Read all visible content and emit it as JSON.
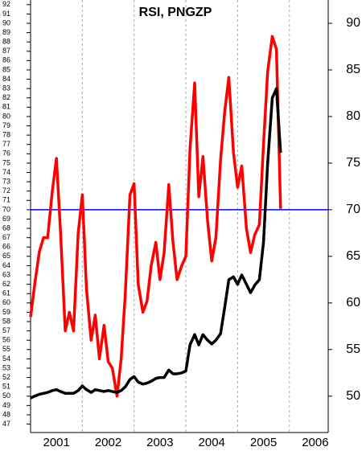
{
  "chart_data": {
    "type": "line",
    "title": "RSI, PNGZP",
    "x": [
      2001.0,
      2001.08,
      2001.17,
      2001.25,
      2001.33,
      2001.42,
      2001.5,
      2001.58,
      2001.67,
      2001.75,
      2001.83,
      2001.92,
      2002.0,
      2002.08,
      2002.17,
      2002.25,
      2002.33,
      2002.42,
      2002.5,
      2002.58,
      2002.67,
      2002.75,
      2002.83,
      2002.92,
      2003.0,
      2003.08,
      2003.17,
      2003.25,
      2003.33,
      2003.42,
      2003.5,
      2003.58,
      2003.67,
      2003.75,
      2003.83,
      2003.92,
      2004.0,
      2004.08,
      2004.17,
      2004.25,
      2004.33,
      2004.42,
      2004.5,
      2004.58,
      2004.67,
      2004.75,
      2004.83,
      2004.92,
      2005.0,
      2005.08,
      2005.17,
      2005.25,
      2005.33,
      2005.42,
      2005.5,
      2005.58,
      2005.67,
      2005.75,
      2005.83
    ],
    "series": [
      {
        "name": "RSI",
        "color": "#ff0000",
        "values": [
          58.5,
          62,
          65.5,
          67,
          67,
          72,
          75.5,
          67.5,
          57,
          59,
          57,
          67.5,
          71.6,
          61.5,
          56,
          58.7,
          54,
          57.6,
          53.7,
          53,
          50,
          54,
          61,
          71.6,
          72.8,
          62,
          59,
          60.2,
          64,
          66.5,
          62.5,
          65.4,
          72.7,
          66.6,
          62.5,
          64,
          65,
          76.5,
          83.6,
          71.4,
          75.7,
          68.8,
          64.5,
          67,
          75.3,
          80.5,
          84.2,
          76.1,
          72.4,
          74.7,
          68,
          65.4,
          67.3,
          68.4,
          77,
          84.8,
          88.6,
          87.2,
          70.1
        ]
      },
      {
        "name": "PNGZP",
        "color": "#000000",
        "values": [
          49.8,
          50,
          50.2,
          50.3,
          50.4,
          50.6,
          50.7,
          50.5,
          50.3,
          50.3,
          50.3,
          50.6,
          51.1,
          50.7,
          50.4,
          50.7,
          50.6,
          50.5,
          50.6,
          50.5,
          50.4,
          50.6,
          51,
          51.8,
          52.1,
          51.5,
          51.3,
          51.4,
          51.6,
          51.9,
          52,
          52,
          52.8,
          52.4,
          52.4,
          52.5,
          52.7,
          55.5,
          56.6,
          55.5,
          56.6,
          56,
          55.6,
          56,
          56.7,
          59.5,
          62.5,
          62.8,
          62,
          63,
          62,
          61.1,
          61.9,
          62.5,
          66.5,
          75,
          82,
          83,
          76.1
        ]
      }
    ],
    "xlim": [
      2001,
      2006.75
    ],
    "xticks": [
      {
        "value": 2001.5,
        "label": "2001"
      },
      {
        "value": 2002.5,
        "label": "2002"
      },
      {
        "value": 2003.5,
        "label": "2003"
      },
      {
        "value": 2004.5,
        "label": "2004"
      },
      {
        "value": 2005.5,
        "label": "2005"
      },
      {
        "value": 2006.5,
        "label": "2006"
      }
    ],
    "x_dividers": [
      2002,
      2003,
      2004,
      2005,
      2006
    ],
    "ylim": [
      46.1,
      92.5
    ],
    "yticks": [
      47,
      48,
      49,
      50,
      51,
      52,
      53,
      54,
      55,
      56,
      57,
      58,
      59,
      60,
      61,
      62,
      63,
      64,
      65,
      66,
      67,
      68,
      69,
      70,
      71,
      72,
      73,
      74,
      75,
      76,
      77,
      78,
      79,
      80,
      81,
      82,
      83,
      84,
      85,
      86,
      87,
      88,
      89,
      90,
      91,
      92
    ],
    "y2lim": [
      46.1,
      92.5
    ],
    "y2ticks": [
      50,
      55,
      60,
      65,
      70,
      75,
      80,
      85,
      90
    ],
    "hline": {
      "value": 70,
      "color": "#0000ff"
    }
  }
}
